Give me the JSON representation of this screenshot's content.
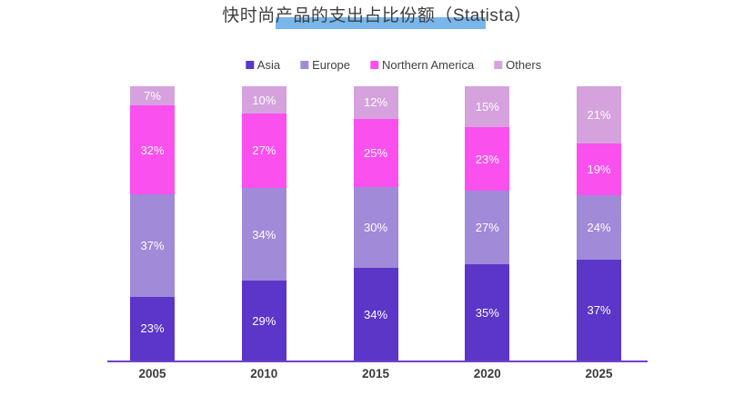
{
  "title": {
    "full": "快时尚产品的支出占比份额（Statista）",
    "text_before_highlight": "快时尚",
    "text_highlighted": "产品的支出占比份额（Stat",
    "text_after_highlight": "ista）",
    "highlight_color": "#79b6e9",
    "text_color": "#3f3f3f"
  },
  "legend": {
    "items": [
      {
        "label": "Asia",
        "color": "#5b36c9"
      },
      {
        "label": "Europe",
        "color": "#a18ad8"
      },
      {
        "label": "Northern America",
        "color": "#fa50ee"
      },
      {
        "label": "Others",
        "color": "#d5a2de"
      }
    ]
  },
  "chart_data": {
    "type": "bar",
    "stacked": true,
    "percent_of_total": true,
    "title": "快时尚产品的支出占比份额（Statista）",
    "categories": [
      "2005",
      "2010",
      "2015",
      "2020",
      "2025"
    ],
    "series": [
      {
        "name": "Asia",
        "color": "#5b36c9",
        "values": [
          23,
          29,
          34,
          35,
          37
        ]
      },
      {
        "name": "Europe",
        "color": "#a18ad8",
        "values": [
          37,
          34,
          30,
          27,
          24
        ]
      },
      {
        "name": "Northern America",
        "color": "#fa50ee",
        "values": [
          32,
          27,
          25,
          23,
          19
        ]
      },
      {
        "name": "Others",
        "color": "#d5a2de",
        "values": [
          7,
          10,
          12,
          15,
          21
        ]
      }
    ],
    "value_suffix": "%",
    "data_label_color": "#ffffff",
    "axis_line_color": "#7040c8",
    "xlabel": "",
    "ylabel": "",
    "ylim": [
      0,
      100
    ],
    "grid": false,
    "legend_position": "top",
    "stack_order_bottom_to_top": [
      "Asia",
      "Europe",
      "Northern America",
      "Others"
    ]
  }
}
